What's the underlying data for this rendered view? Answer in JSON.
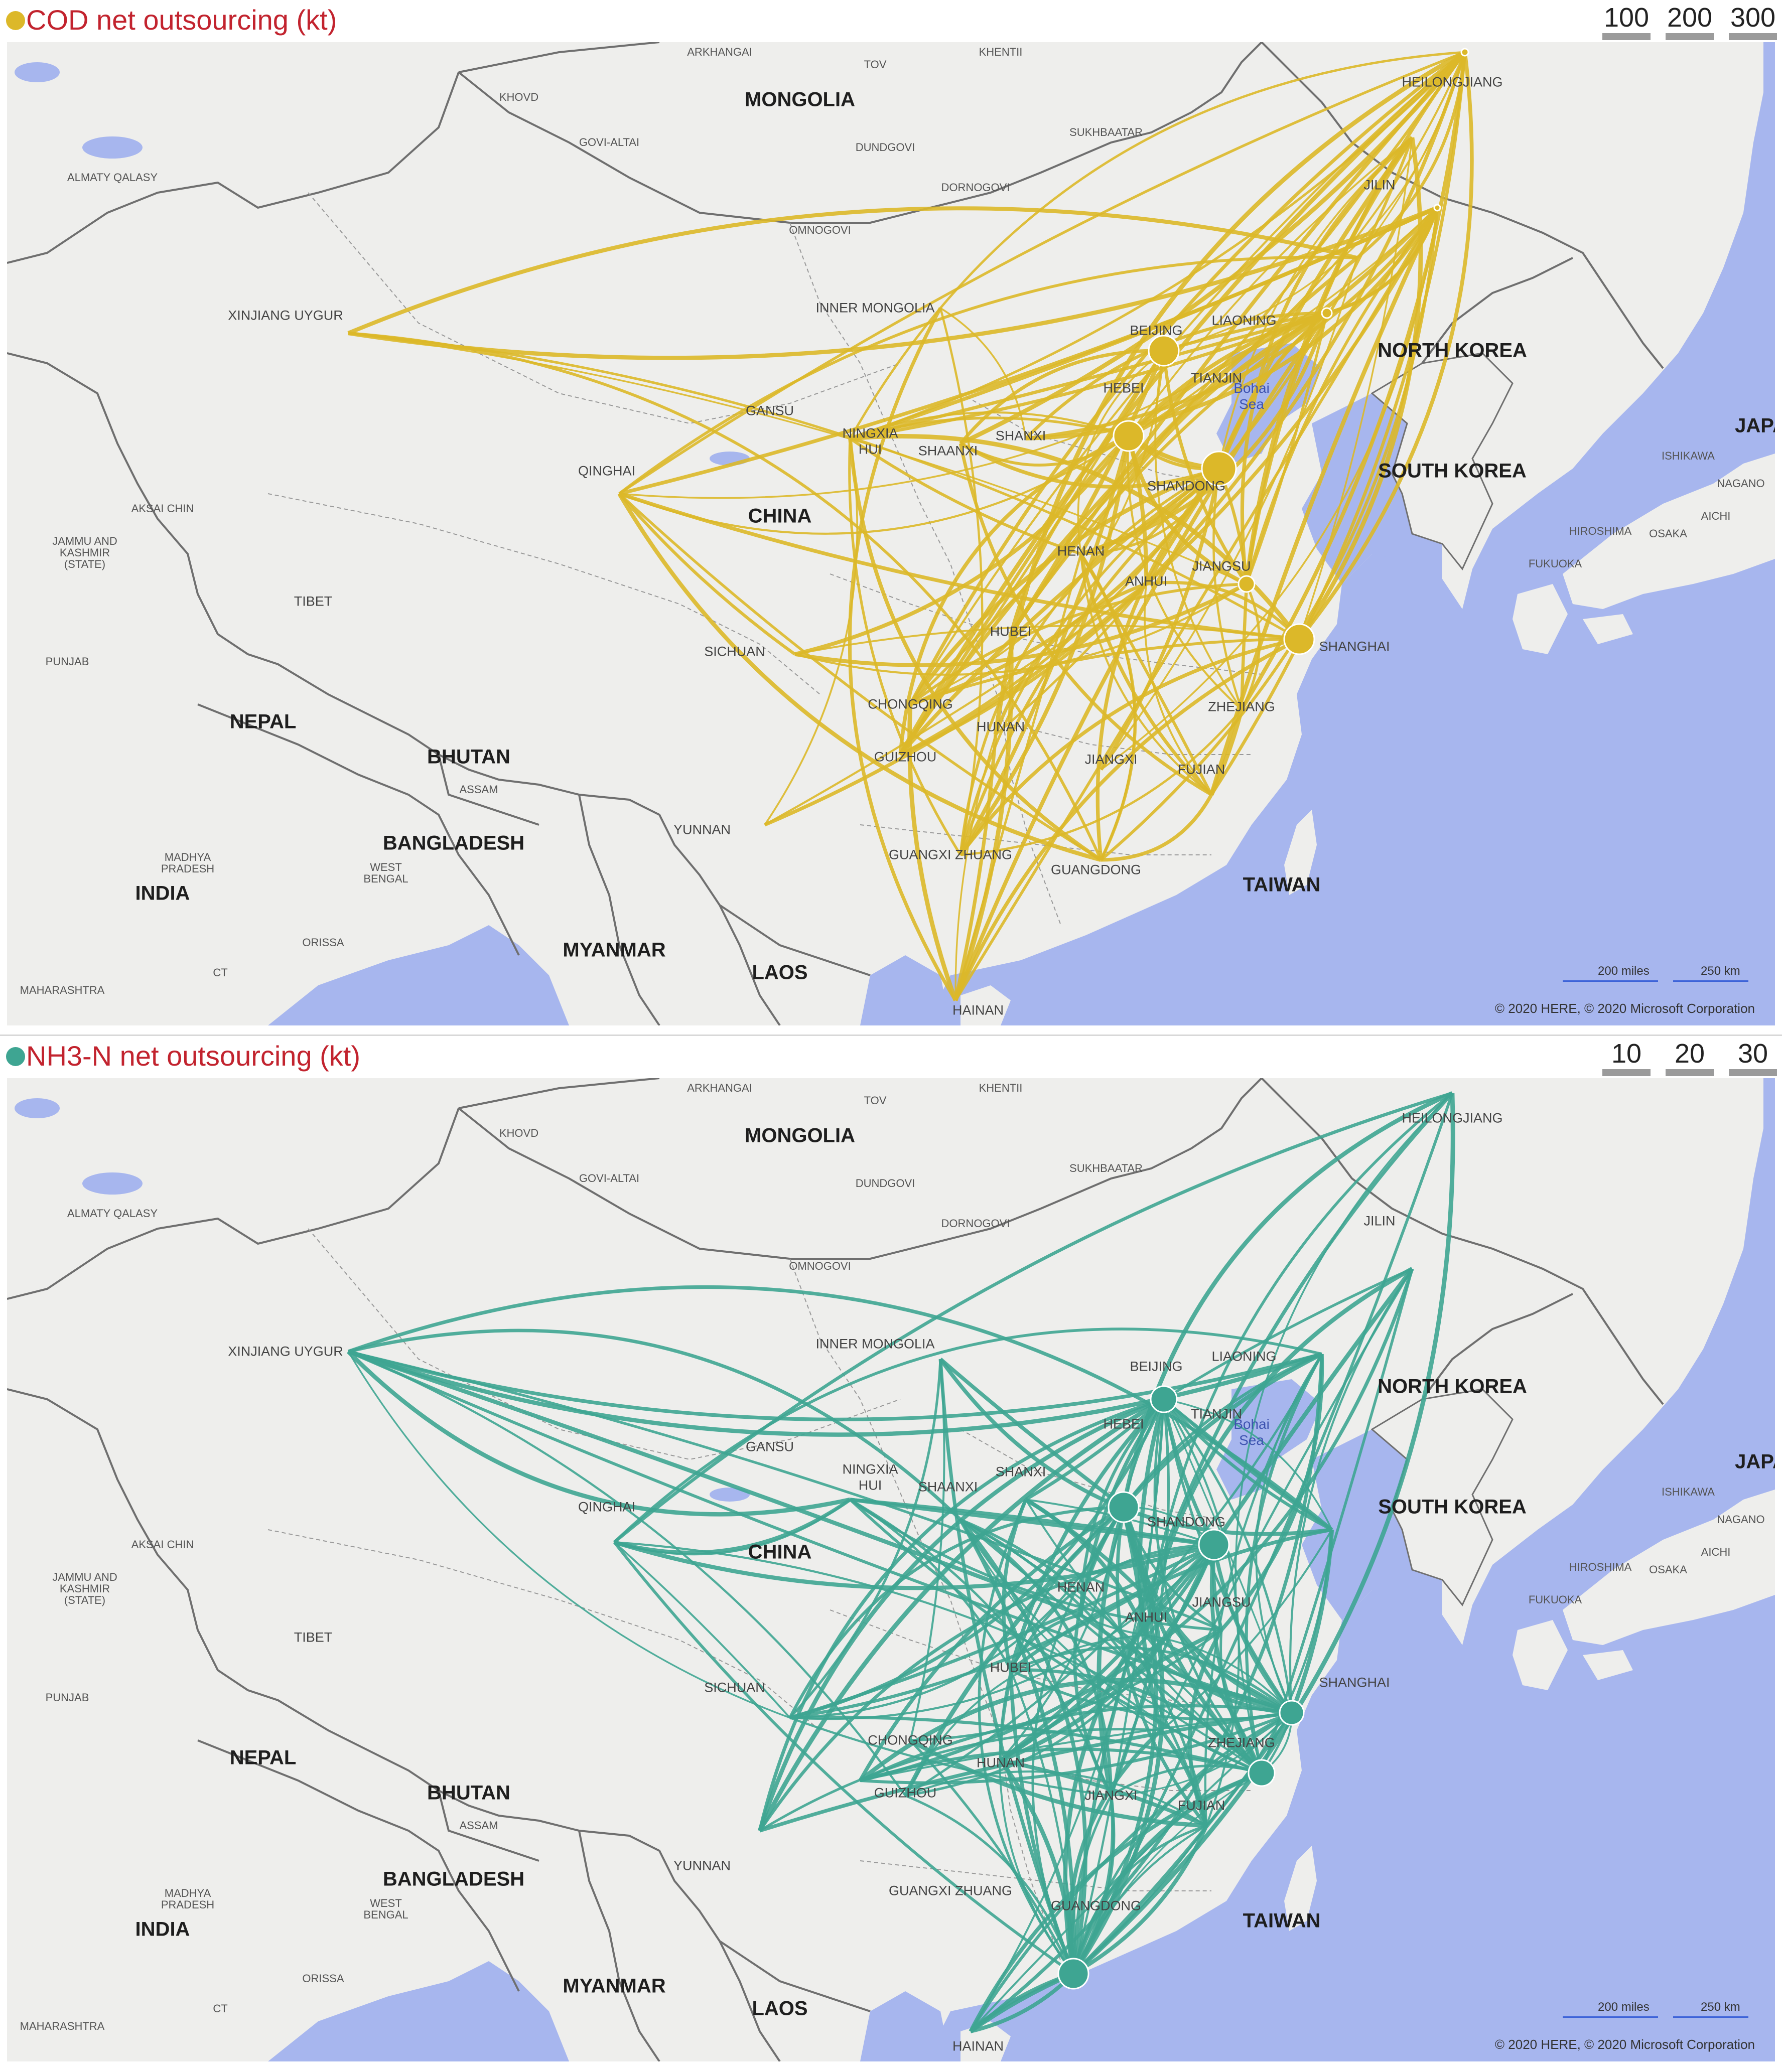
{
  "panels": [
    {
      "id": "cod",
      "title": "COD net outsourcing (kt)",
      "color": "#dcb829",
      "legend": [
        "100",
        "200",
        "300"
      ],
      "nodes": [
        "HEILONGJIANG",
        "BEIJING",
        "HEBEI",
        "SHANDONG",
        "SHANGHAI",
        "JIANGSU",
        "LIAONING",
        "JILIN"
      ],
      "flows": 140
    },
    {
      "id": "nh3",
      "title": "NH3-N net outsourcing (kt)",
      "color": "#3ea592",
      "legend": [
        "10",
        "20",
        "30"
      ],
      "nodes": [
        "BEIJING",
        "HEBEI",
        "SHANDONG",
        "SHANGHAI",
        "ZHEJIANG",
        "GUANGDONG"
      ],
      "flows": 180
    }
  ],
  "map_labels": {
    "countries": [
      "MONGOLIA",
      "CHINA",
      "NORTH KOREA",
      "SOUTH KOREA",
      "JAPA",
      "NEPAL",
      "BHUTAN",
      "BANGLADESH",
      "INDIA",
      "MYANMAR",
      "LAOS",
      "TAIWAN"
    ],
    "provinces": [
      "HEILONGJIANG",
      "JILIN",
      "LIAONING",
      "BEIJING",
      "TIANJIN",
      "HEBEI",
      "INNER MONGOLIA",
      "XINJIANG UYGUR",
      "GANSU",
      "NINGXIA",
      "HUI",
      "SHANXI",
      "SHAANXI",
      "QINGHAI",
      "SHANDONG",
      "HENAN",
      "ANHUI",
      "JIANGSU",
      "SHANGHAI",
      "HUBEI",
      "SICHUAN",
      "CHONGQING",
      "HUNAN",
      "ZHEJIANG",
      "GUIZHOU",
      "JIANGXI",
      "FUJIAN",
      "YUNNAN",
      "GUANGXI ZHUANG",
      "GUANGDONG",
      "HAINAN",
      "TIBET"
    ],
    "small": [
      "ARKHANGAI",
      "KHENTII",
      "TOV",
      "KHOVD",
      "GOVI-ALTAI",
      "DUNDGOVI",
      "SUKHBAATAR",
      "DORNOGOVI",
      "OMNOGOVI",
      "ALMATY QALASY",
      "AKSAI CHIN",
      "JAMMU AND KASHMIR (STATE)",
      "PUNJAB",
      "ASSAM",
      "MADHYA PRADESH",
      "WEST BENGAL",
      "ORISSA",
      "CT",
      "MAHARASHTRA",
      "ISHIKAWA",
      "NAGANO",
      "AICHI",
      "HIROSHIMA",
      "OSAKA",
      "FUKUOKA"
    ],
    "sea": [
      "Bohai",
      "Sea"
    ],
    "scale_miles": "200 miles",
    "scale_km": "250 km",
    "copyright": "© 2020 HERE, © 2020 Microsoft Corporation"
  },
  "colors": {
    "land": "#eeeeec",
    "water": "#a7b6ee",
    "border": "#6f6f6f",
    "title": "#c2232e"
  }
}
